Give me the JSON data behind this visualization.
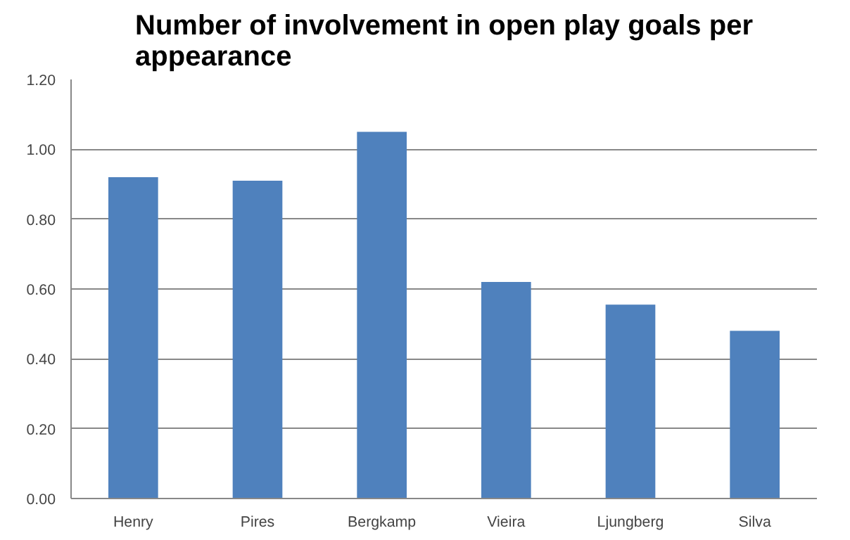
{
  "chart_data": {
    "type": "bar",
    "title": "Number of involvement in open play goals per appearance",
    "categories": [
      "Henry",
      "Pires",
      "Bergkamp",
      "Vieira",
      "Ljungberg",
      "Silva"
    ],
    "values": [
      0.92,
      0.91,
      1.05,
      0.62,
      0.555,
      0.48
    ],
    "color": "#4f81bd",
    "ylim": [
      0,
      1.2
    ],
    "yticks": [
      {
        "value": 0,
        "label": "0.00"
      },
      {
        "value": 0.2,
        "label": "0.20"
      },
      {
        "value": 0.4,
        "label": "0.40"
      },
      {
        "value": 0.6,
        "label": "0.60"
      },
      {
        "value": 0.8,
        "label": "0.80"
      },
      {
        "value": 1.0,
        "label": "1.00"
      },
      {
        "value": 1.2,
        "label": "1.20"
      }
    ],
    "grid": "y"
  }
}
